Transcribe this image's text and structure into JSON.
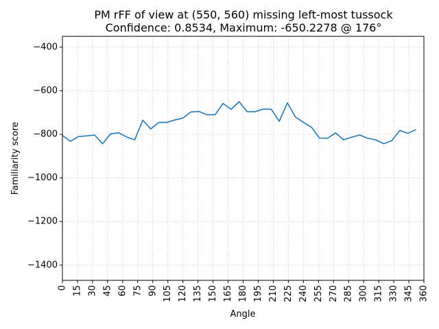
{
  "chart_data": {
    "type": "line",
    "title": "PM rFF of view at (550, 560) missing left-most tussock",
    "subtitle": "Confidence: 0.8534, Maximum: -650.2278 @ 176°",
    "xlabel": "Angle",
    "ylabel": "Familiarity score",
    "xlim": [
      0,
      360
    ],
    "ylim": [
      -1470,
      -350
    ],
    "grid": true,
    "xticks": [
      0,
      15,
      30,
      45,
      60,
      75,
      90,
      105,
      120,
      135,
      150,
      165,
      180,
      195,
      210,
      225,
      240,
      255,
      270,
      285,
      300,
      315,
      330,
      345,
      360
    ],
    "yticks": [
      -1400,
      -1200,
      -1000,
      -800,
      -600,
      -400
    ],
    "ytick_labels": [
      "−1400",
      "−1200",
      "−1000",
      "−800",
      "−600",
      "−400"
    ],
    "line_color": "#1f77b4",
    "series": [
      {
        "x": [
          0,
          8,
          16,
          24,
          32,
          40,
          48,
          56,
          64,
          72,
          80,
          88,
          96,
          104,
          112,
          120,
          128,
          136,
          144,
          152,
          160,
          168,
          176,
          184,
          192,
          200,
          208,
          216,
          224,
          232,
          240,
          248,
          256,
          264,
          272,
          280,
          288,
          296,
          304,
          312,
          320,
          328,
          336,
          344,
          352
        ],
        "y": [
          -805,
          -832,
          -810,
          -807,
          -803,
          -843,
          -797,
          -793,
          -812,
          -825,
          -735,
          -775,
          -745,
          -745,
          -734,
          -725,
          -697,
          -695,
          -710,
          -710,
          -658,
          -685,
          -650,
          -696,
          -696,
          -684,
          -685,
          -740,
          -655,
          -720,
          -745,
          -767,
          -817,
          -818,
          -793,
          -825,
          -813,
          -803,
          -818,
          -825,
          -843,
          -829,
          -782,
          -795,
          -778
        ]
      }
    ]
  }
}
